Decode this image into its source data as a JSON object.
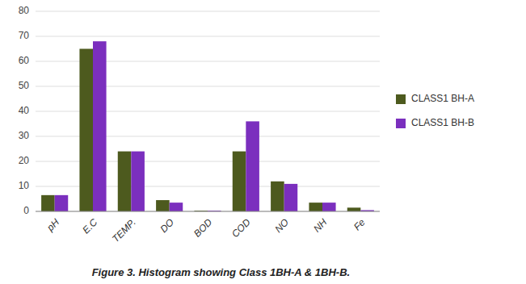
{
  "chart_data": {
    "type": "bar",
    "title": "Figure 3. Histogram showing Class 1BH-A & 1BH-B.",
    "categories": [
      "pH",
      "E.C",
      "TEMP.",
      "DO",
      "BOD",
      "COD",
      "NO",
      "NH",
      "Fe"
    ],
    "series": [
      {
        "name": "CLASS1 BH-A",
        "color": "#4d5a1e",
        "values": [
          6.5,
          65.0,
          24.0,
          4.5,
          0.3,
          24.0,
          12.0,
          3.5,
          1.5
        ]
      },
      {
        "name": "CLASS1 BH-B",
        "color": "#7b2fbe",
        "values": [
          6.5,
          68.0,
          24.0,
          3.5,
          0.3,
          36.0,
          11.0,
          3.5,
          0.5
        ]
      }
    ],
    "ylim": [
      0,
      80
    ],
    "yticks": [
      0,
      10,
      20,
      30,
      40,
      50,
      60,
      70,
      80
    ],
    "grid": true,
    "legend": "right"
  }
}
